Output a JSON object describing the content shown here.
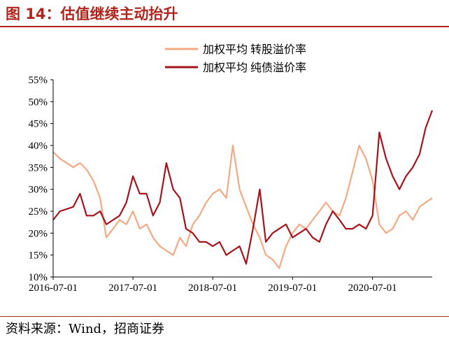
{
  "figure": {
    "title": "图 14：估值继续主动抬升",
    "source": "资料来源：Wind，招商证券"
  },
  "colors": {
    "title": "#b1261c",
    "convertible": "#f2aa84",
    "pure_bond": "#a3141c",
    "axis": "#000000"
  },
  "chart_data": {
    "type": "line",
    "title": "",
    "xlabel": "",
    "ylabel": "",
    "xlim": [
      "2016-07-01",
      "2021-03-31"
    ],
    "ylim": [
      10,
      55
    ],
    "y_ticks": [
      "10%",
      "15%",
      "20%",
      "25%",
      "30%",
      "35%",
      "40%",
      "45%",
      "50%",
      "55%"
    ],
    "x_ticks": [
      "2016-07-01",
      "2017-07-01",
      "2018-07-01",
      "2019-07-01",
      "2020-07-01"
    ],
    "grid": false,
    "legend_position": "top-center",
    "series": [
      {
        "name": "加权平均 转股溢价率",
        "color": "#f2aa84",
        "points": [
          [
            "2016-07-01",
            38.5
          ],
          [
            "2016-08-01",
            37
          ],
          [
            "2016-09-01",
            36
          ],
          [
            "2016-10-01",
            35
          ],
          [
            "2016-11-01",
            36
          ],
          [
            "2016-12-01",
            34.5
          ],
          [
            "2017-01-01",
            32
          ],
          [
            "2017-02-01",
            28
          ],
          [
            "2017-03-01",
            19
          ],
          [
            "2017-04-01",
            21
          ],
          [
            "2017-05-01",
            23
          ],
          [
            "2017-06-01",
            22
          ],
          [
            "2017-07-01",
            25
          ],
          [
            "2017-08-01",
            21
          ],
          [
            "2017-09-01",
            22
          ],
          [
            "2017-10-01",
            19
          ],
          [
            "2017-11-01",
            17
          ],
          [
            "2017-12-01",
            16
          ],
          [
            "2018-01-01",
            15
          ],
          [
            "2018-02-01",
            19
          ],
          [
            "2018-03-01",
            17
          ],
          [
            "2018-04-01",
            22
          ],
          [
            "2018-05-01",
            24
          ],
          [
            "2018-06-01",
            27
          ],
          [
            "2018-07-01",
            29
          ],
          [
            "2018-08-01",
            30
          ],
          [
            "2018-09-01",
            28
          ],
          [
            "2018-10-01",
            40
          ],
          [
            "2018-11-01",
            30
          ],
          [
            "2018-12-01",
            26
          ],
          [
            "2019-01-01",
            22
          ],
          [
            "2019-02-01",
            19
          ],
          [
            "2019-03-01",
            15
          ],
          [
            "2019-04-01",
            14
          ],
          [
            "2019-05-01",
            12
          ],
          [
            "2019-06-01",
            17
          ],
          [
            "2019-07-01",
            20
          ],
          [
            "2019-08-01",
            22
          ],
          [
            "2019-09-01",
            21
          ],
          [
            "2019-10-01",
            23
          ],
          [
            "2019-11-01",
            25
          ],
          [
            "2019-12-01",
            27
          ],
          [
            "2020-01-01",
            25
          ],
          [
            "2020-02-01",
            24
          ],
          [
            "2020-03-01",
            28
          ],
          [
            "2020-04-01",
            34
          ],
          [
            "2020-05-01",
            40
          ],
          [
            "2020-06-01",
            37
          ],
          [
            "2020-07-01",
            32
          ],
          [
            "2020-08-01",
            22
          ],
          [
            "2020-09-01",
            20
          ],
          [
            "2020-10-01",
            21
          ],
          [
            "2020-11-01",
            24
          ],
          [
            "2020-12-01",
            25
          ],
          [
            "2021-01-01",
            23
          ],
          [
            "2021-02-01",
            26
          ],
          [
            "2021-03-01",
            27
          ],
          [
            "2021-03-31",
            28
          ]
        ]
      },
      {
        "name": "加权平均 纯债溢价率",
        "color": "#a3141c",
        "points": [
          [
            "2016-07-01",
            23
          ],
          [
            "2016-08-01",
            25
          ],
          [
            "2016-09-01",
            25.5
          ],
          [
            "2016-10-01",
            26
          ],
          [
            "2016-11-01",
            29
          ],
          [
            "2016-12-01",
            24
          ],
          [
            "2017-01-01",
            24
          ],
          [
            "2017-02-01",
            25
          ],
          [
            "2017-03-01",
            22
          ],
          [
            "2017-04-01",
            23
          ],
          [
            "2017-05-01",
            24
          ],
          [
            "2017-06-01",
            27
          ],
          [
            "2017-07-01",
            33
          ],
          [
            "2017-08-01",
            29
          ],
          [
            "2017-09-01",
            29
          ],
          [
            "2017-10-01",
            24
          ],
          [
            "2017-11-01",
            27
          ],
          [
            "2017-12-01",
            36
          ],
          [
            "2018-01-01",
            30
          ],
          [
            "2018-02-01",
            28
          ],
          [
            "2018-03-01",
            21
          ],
          [
            "2018-04-01",
            20
          ],
          [
            "2018-05-01",
            18
          ],
          [
            "2018-06-01",
            18
          ],
          [
            "2018-07-01",
            17
          ],
          [
            "2018-08-01",
            18
          ],
          [
            "2018-09-01",
            15
          ],
          [
            "2018-10-01",
            16
          ],
          [
            "2018-11-01",
            17
          ],
          [
            "2018-12-01",
            13
          ],
          [
            "2019-01-01",
            21
          ],
          [
            "2019-02-01",
            30
          ],
          [
            "2019-03-01",
            18
          ],
          [
            "2019-04-01",
            20
          ],
          [
            "2019-05-01",
            21
          ],
          [
            "2019-06-01",
            22
          ],
          [
            "2019-07-01",
            19
          ],
          [
            "2019-08-01",
            20
          ],
          [
            "2019-09-01",
            21
          ],
          [
            "2019-10-01",
            19
          ],
          [
            "2019-11-01",
            18
          ],
          [
            "2019-12-01",
            22
          ],
          [
            "2020-01-01",
            25
          ],
          [
            "2020-02-01",
            23
          ],
          [
            "2020-03-01",
            21
          ],
          [
            "2020-04-01",
            21
          ],
          [
            "2020-05-01",
            22
          ],
          [
            "2020-06-01",
            21
          ],
          [
            "2020-07-01",
            24
          ],
          [
            "2020-08-01",
            43
          ],
          [
            "2020-09-01",
            37
          ],
          [
            "2020-10-01",
            33
          ],
          [
            "2020-11-01",
            30
          ],
          [
            "2020-12-01",
            33
          ],
          [
            "2021-01-01",
            35
          ],
          [
            "2021-02-01",
            38
          ],
          [
            "2021-03-01",
            44
          ],
          [
            "2021-03-31",
            48
          ]
        ]
      }
    ]
  }
}
